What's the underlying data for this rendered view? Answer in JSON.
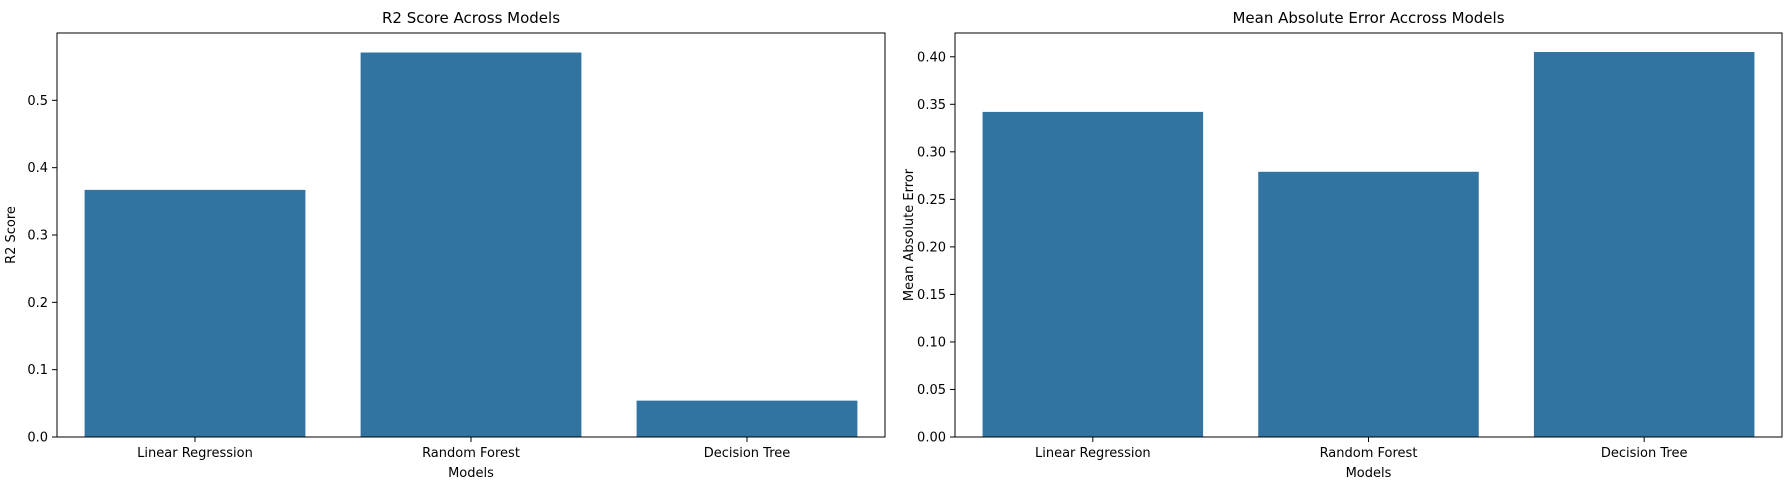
{
  "bar_color": "#3274a1",
  "chart_data": [
    {
      "type": "bar",
      "title": "R2 Score Across Models",
      "xlabel": "Models",
      "ylabel": "R2 Score",
      "categories": [
        "Linear Regression",
        "Random Forest",
        "Decision Tree"
      ],
      "values": [
        0.367,
        0.571,
        0.054
      ],
      "ylim": [
        0,
        0.6
      ],
      "yticks": [
        0.0,
        0.1,
        0.2,
        0.3,
        0.4,
        0.5
      ],
      "ytick_labels": [
        "0.0",
        "0.1",
        "0.2",
        "0.3",
        "0.4",
        "0.5"
      ],
      "grid": false,
      "legend": "none"
    },
    {
      "type": "bar",
      "title": "Mean Absolute Error Accross Models",
      "xlabel": "Models",
      "ylabel": "Mean Absolute Error",
      "categories": [
        "Linear Regression",
        "Random Forest",
        "Decision Tree"
      ],
      "values": [
        0.342,
        0.279,
        0.405
      ],
      "ylim": [
        0,
        0.425
      ],
      "yticks": [
        0.0,
        0.05,
        0.1,
        0.15,
        0.2,
        0.25,
        0.3,
        0.35,
        0.4
      ],
      "ytick_labels": [
        "0.00",
        "0.05",
        "0.10",
        "0.15",
        "0.20",
        "0.25",
        "0.30",
        "0.35",
        "0.40"
      ],
      "grid": false,
      "legend": "none"
    }
  ]
}
